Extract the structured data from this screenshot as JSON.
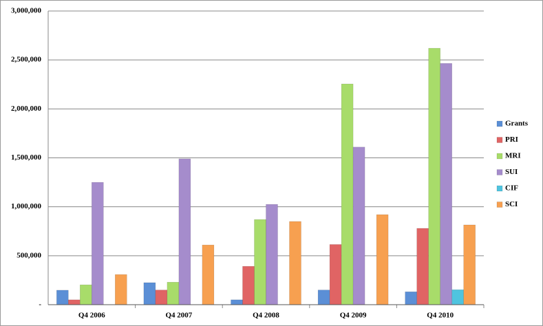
{
  "chart_data": {
    "type": "bar",
    "categories": [
      "Q4 2006",
      "Q4 2007",
      "Q4 2008",
      "Q4 2009",
      "Q4 2010"
    ],
    "series": [
      {
        "name": "Grants",
        "color": "#5b8fd6",
        "values": [
          148000,
          225000,
          50000,
          150000,
          132000
        ]
      },
      {
        "name": "PRI",
        "color": "#e06464",
        "values": [
          50000,
          150000,
          392000,
          615000,
          780000
        ]
      },
      {
        "name": "MRI",
        "color": "#a8dc6a",
        "values": [
          203000,
          230000,
          870000,
          2255000,
          2620000
        ]
      },
      {
        "name": "SUI",
        "color": "#a58ccc",
        "values": [
          1250000,
          1490000,
          1025000,
          1610000,
          2465000
        ]
      },
      {
        "name": "CIF",
        "color": "#4fc4df",
        "values": [
          null,
          null,
          null,
          null,
          153000
        ]
      },
      {
        "name": "SCI",
        "color": "#f7a050",
        "values": [
          308000,
          610000,
          850000,
          920000,
          815000
        ]
      }
    ],
    "ylim": [
      0,
      3000000
    ],
    "yticks": [
      {
        "value": 0,
        "label": "-"
      },
      {
        "value": 500000,
        "label": "500,000"
      },
      {
        "value": 1000000,
        "label": "1,000,000"
      },
      {
        "value": 1500000,
        "label": "1,500,000"
      },
      {
        "value": 2000000,
        "label": "2,000,000"
      },
      {
        "value": 2500000,
        "label": "2,500,000"
      },
      {
        "value": 3000000,
        "label": "3,000,000"
      }
    ],
    "grid": true,
    "legend": "right"
  }
}
